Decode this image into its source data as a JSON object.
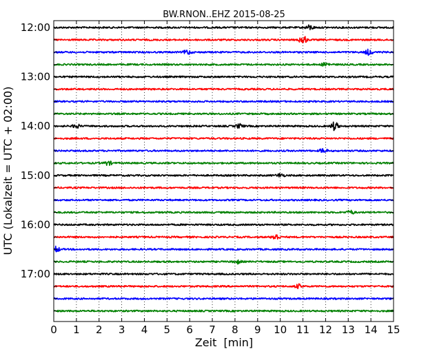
{
  "chart_data": {
    "type": "line",
    "title": "BW.RNON..EHZ 2015-08-25",
    "xlabel": "Zeit  [min]",
    "ylabel": "UTC (Lokalzeit = UTC + 02:00)",
    "xlim": [
      0,
      15
    ],
    "x_ticks": [
      "0",
      "1",
      "2",
      "3",
      "4",
      "5",
      "6",
      "7",
      "8",
      "9",
      "10",
      "11",
      "12",
      "13",
      "14",
      "15"
    ],
    "y_tick_labels": [
      "12:00",
      "13:00",
      "14:00",
      "15:00",
      "16:00",
      "17:00"
    ],
    "grid": "vertical dotted",
    "trace_interval_min": 15,
    "colors": [
      "#000000",
      "#ff0000",
      "#0000ff",
      "#008000"
    ],
    "series": [
      {
        "start": "12:00",
        "events": [
          {
            "t": 11.3,
            "amp": 1.6
          }
        ]
      },
      {
        "start": "12:15",
        "events": [
          {
            "t": 11.0,
            "amp": 3.0
          }
        ]
      },
      {
        "start": "12:30",
        "events": [
          {
            "t": 5.9,
            "amp": 1.6
          },
          {
            "t": 13.9,
            "amp": 1.8
          }
        ]
      },
      {
        "start": "12:45",
        "events": [
          {
            "t": 12.0,
            "amp": 1.3
          }
        ]
      },
      {
        "start": "13:00",
        "events": []
      },
      {
        "start": "13:15",
        "events": []
      },
      {
        "start": "13:30",
        "events": []
      },
      {
        "start": "13:45",
        "events": []
      },
      {
        "start": "14:00",
        "events": [
          {
            "t": 1.0,
            "amp": 1.3
          },
          {
            "t": 8.2,
            "amp": 1.4
          },
          {
            "t": 12.4,
            "amp": 3.0
          }
        ]
      },
      {
        "start": "14:15",
        "events": []
      },
      {
        "start": "14:30",
        "events": [
          {
            "t": 11.9,
            "amp": 1.4
          }
        ]
      },
      {
        "start": "14:45",
        "events": [
          {
            "t": 2.4,
            "amp": 1.4
          }
        ]
      },
      {
        "start": "15:00",
        "events": [
          {
            "t": 10.0,
            "amp": 1.3
          }
        ]
      },
      {
        "start": "15:15",
        "events": []
      },
      {
        "start": "15:30",
        "events": []
      },
      {
        "start": "15:45",
        "events": [
          {
            "t": 13.1,
            "amp": 1.3
          }
        ]
      },
      {
        "start": "16:00",
        "events": []
      },
      {
        "start": "16:15",
        "events": [
          {
            "t": 9.8,
            "amp": 2.3
          }
        ]
      },
      {
        "start": "16:30",
        "events": [
          {
            "t": 0.1,
            "amp": 1.8
          }
        ]
      },
      {
        "start": "16:45",
        "events": [
          {
            "t": 8.1,
            "amp": 1.2
          }
        ]
      },
      {
        "start": "17:00",
        "events": []
      },
      {
        "start": "17:15",
        "events": [
          {
            "t": 10.8,
            "amp": 1.3
          }
        ]
      },
      {
        "start": "17:30",
        "events": []
      },
      {
        "start": "17:45",
        "events": []
      }
    ]
  }
}
